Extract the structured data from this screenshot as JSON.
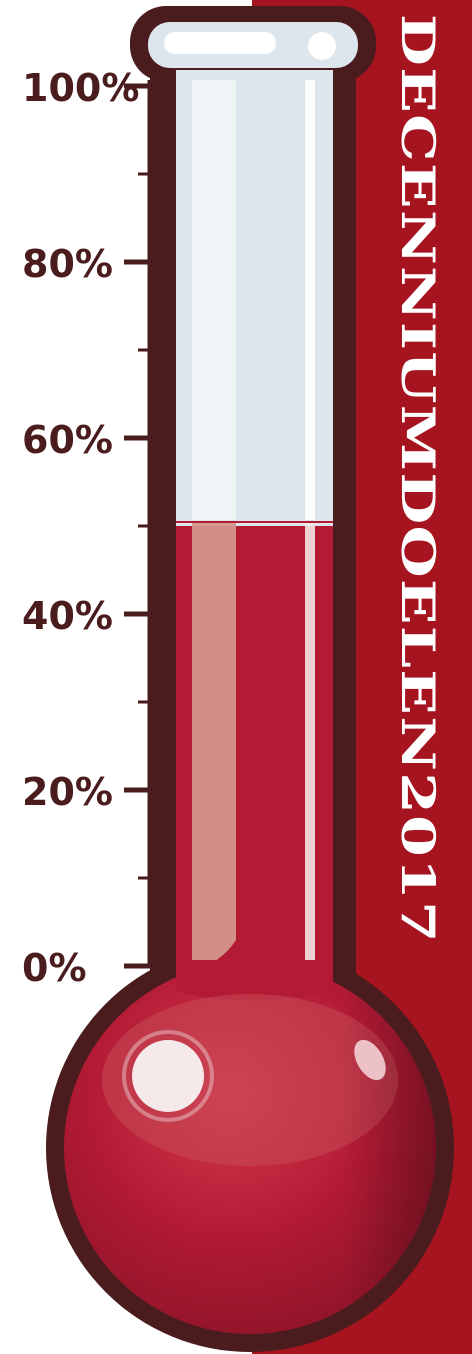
{
  "thermometer": {
    "fill_percent": 50,
    "scale_labels": [
      "100%",
      "80%",
      "60%",
      "40%",
      "20%",
      "0%"
    ],
    "banner_text": "DECENNIUMDOELEN2017",
    "colors": {
      "banner": "#a5141f",
      "outline": "#4a1c1e",
      "liquid": "#b31a34",
      "glass": "#dce6ec",
      "label": "#4a1c1e"
    }
  }
}
